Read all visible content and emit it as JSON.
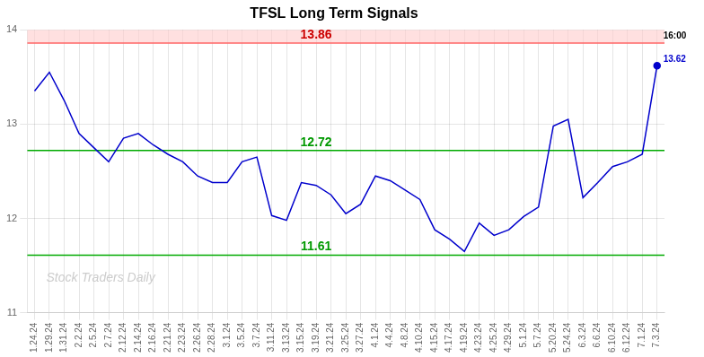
{
  "chart_data": {
    "type": "line",
    "title": "TFSL Long Term Signals",
    "categories": [
      "1.24.24",
      "1.29.24",
      "1.31.24",
      "2.2.24",
      "2.5.24",
      "2.7.24",
      "2.12.24",
      "2.14.24",
      "2.16.24",
      "2.21.24",
      "2.23.24",
      "2.26.24",
      "2.28.24",
      "3.1.24",
      "3.5.24",
      "3.7.24",
      "3.11.24",
      "3.13.24",
      "3.15.24",
      "3.19.24",
      "3.21.24",
      "3.25.24",
      "3.27.24",
      "4.1.24",
      "4.4.24",
      "4.8.24",
      "4.10.24",
      "4.15.24",
      "4.17.24",
      "4.19.24",
      "4.23.24",
      "4.25.24",
      "4.29.24",
      "5.1.24",
      "5.7.24",
      "5.20.24",
      "5.24.24",
      "6.3.24",
      "6.6.24",
      "6.10.24",
      "6.12.24",
      "7.1.24",
      "7.3.24"
    ],
    "values": [
      13.35,
      13.55,
      13.25,
      12.9,
      12.75,
      12.6,
      12.85,
      12.9,
      12.78,
      12.68,
      12.6,
      12.45,
      12.38,
      12.38,
      12.6,
      12.65,
      12.03,
      11.98,
      12.38,
      12.35,
      12.25,
      12.05,
      12.15,
      12.45,
      12.4,
      12.3,
      12.2,
      11.88,
      11.78,
      11.65,
      11.95,
      11.82,
      11.88,
      12.02,
      12.12,
      12.98,
      13.05,
      12.22,
      12.38,
      12.55,
      12.6,
      12.68,
      13.62
    ],
    "color": "#0000cc",
    "ylim": [
      11,
      14
    ],
    "yticks": [
      11,
      12,
      13,
      14
    ],
    "grid": true,
    "lines": [
      {
        "y": 13.86,
        "label": "13.86",
        "color": "#ff6666",
        "label_color": "#cc0000"
      },
      {
        "y": 12.72,
        "label": "12.72",
        "color": "#00aa00",
        "label_color": "#009900"
      },
      {
        "y": 11.61,
        "label": "11.61",
        "color": "#00aa00",
        "label_color": "#009900"
      }
    ],
    "band": {
      "from": 13.86,
      "to": 14,
      "color": "#ffcccc"
    },
    "end_time_label": "16:00",
    "end_value_label": "13.62",
    "watermark": "Stock Traders Daily"
  }
}
